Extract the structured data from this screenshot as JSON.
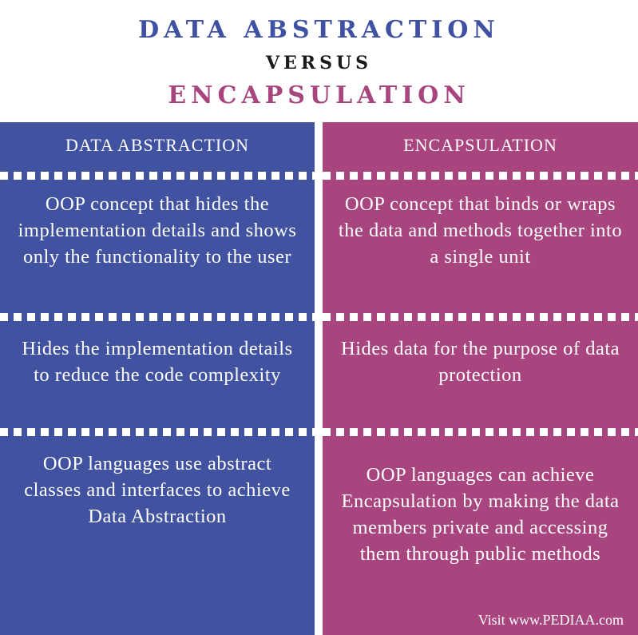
{
  "title": {
    "line1": "DATA ABSTRACTION",
    "line2": "VERSUS",
    "line3": "ENCAPSULATION"
  },
  "colors": {
    "left_accent": "#4152A0",
    "right_accent": "#A8457F",
    "title_blue": "#3F51A2",
    "title_magenta": "#A8457F"
  },
  "comparison": {
    "left": {
      "header": "DATA ABSTRACTION",
      "rows": [
        "OOP concept that hides the implementation details and shows only the functionality to the user",
        "Hides the implementation details to reduce the code complexity",
        "OOP languages use abstract classes and interfaces to achieve Data Abstraction"
      ]
    },
    "right": {
      "header": "ENCAPSULATION",
      "rows": [
        "OOP concept that binds or wraps the data and methods together into a single unit",
        "Hides data for the purpose of data protection",
        "OOP languages can achieve Encapsulation by making the data members private and accessing them through public methods"
      ]
    }
  },
  "footer": "Visit www.PEDIAA.com"
}
